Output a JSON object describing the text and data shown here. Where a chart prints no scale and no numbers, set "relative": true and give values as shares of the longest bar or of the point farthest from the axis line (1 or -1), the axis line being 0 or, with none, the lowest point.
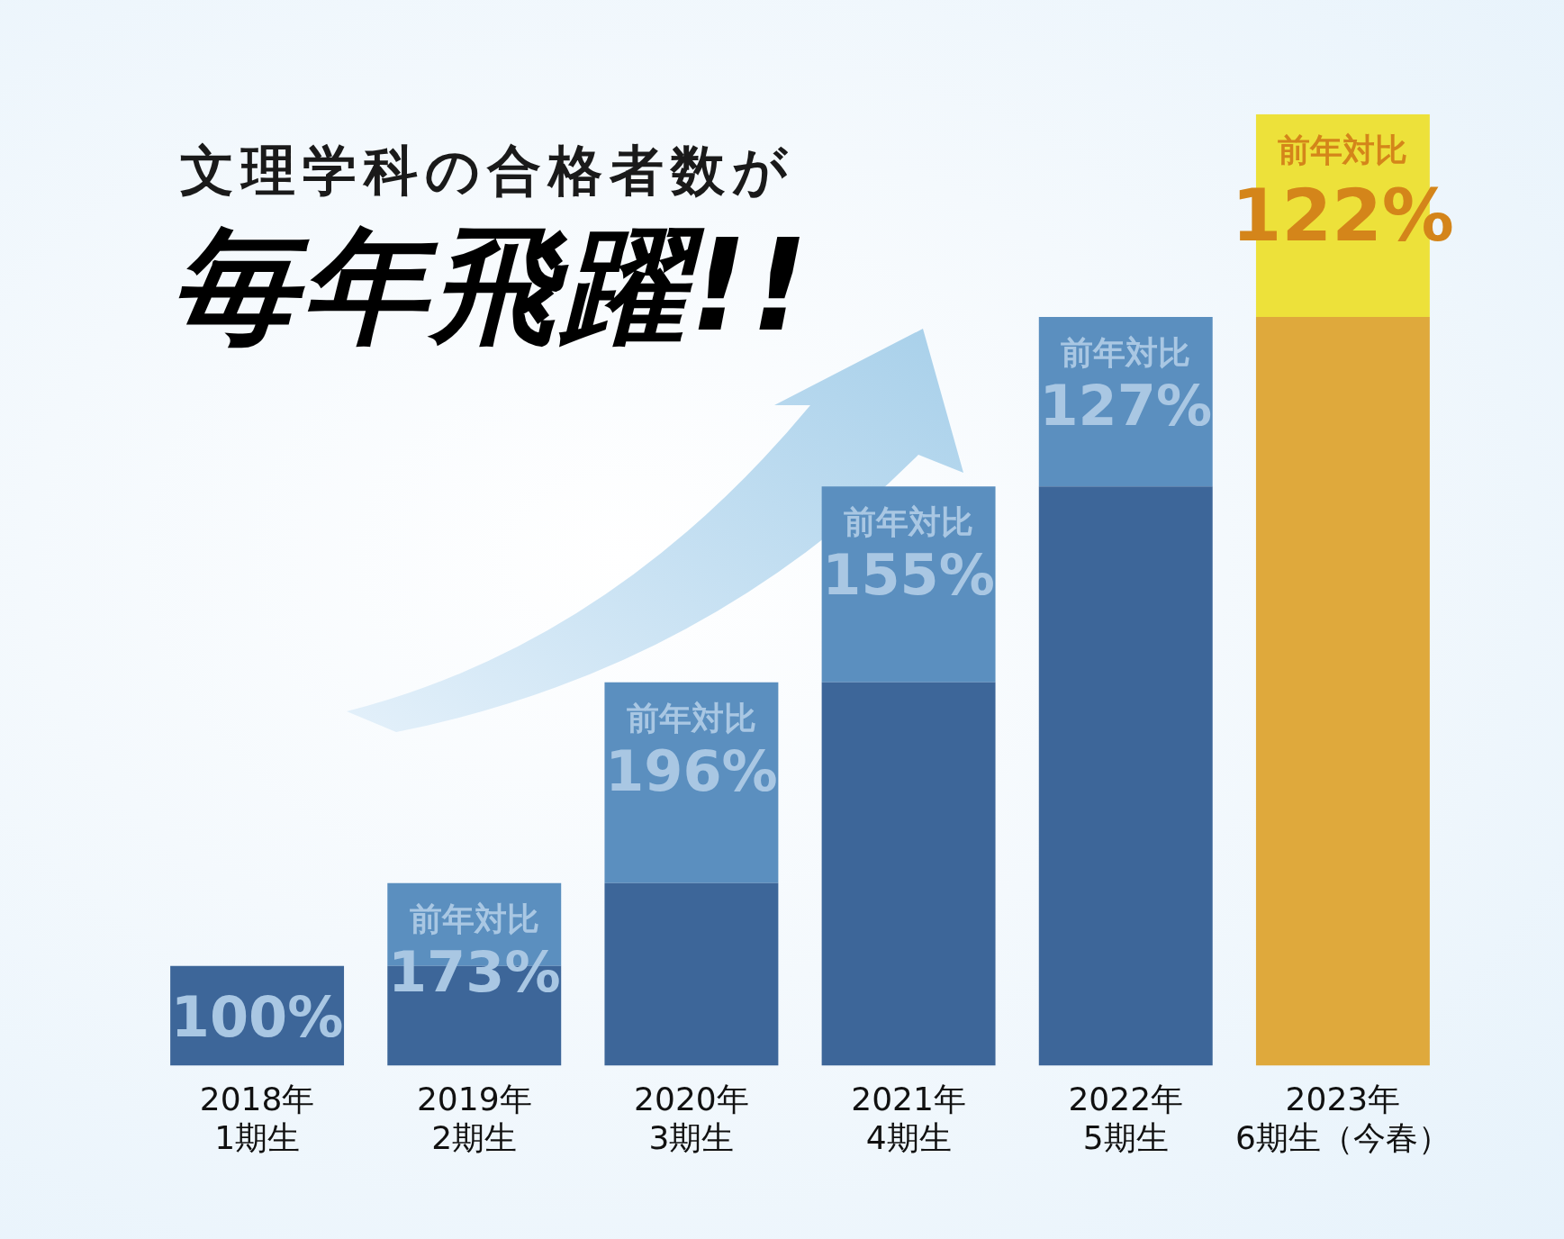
{
  "chart_data": {
    "type": "bar",
    "title": "文理学科の合格者数が",
    "subtitle": "毎年飛躍!!",
    "relative": true,
    "stacked": true,
    "grid": false,
    "legend": false,
    "categories": [
      "2018年\n1期生",
      "2019年\n2期生",
      "2020年\n3期生",
      "2021年\n4期生",
      "2022年\n5期生",
      "2023年\n6期生（今春）"
    ],
    "series": [
      {
        "colors": [
          "#3d6699",
          "#3d6699",
          "#3d6699",
          "#3d6699",
          "#3d6699",
          "#dfa93c"
        ],
        "values": [
          0.105,
          0.105,
          0.192,
          0.403,
          0.609,
          0.787
        ]
      },
      {
        "colors": [
          "#5b8fbf",
          "#5b8fbf",
          "#5b8fbf",
          "#5b8fbf",
          "#5b8fbf",
          "#ede13a"
        ],
        "values": [
          null,
          0.087,
          0.211,
          0.206,
          0.178,
          0.213
        ]
      }
    ],
    "annotations": [
      {
        "text": "100%",
        "x": "2018年\n1期生",
        "y": 0.105
      },
      {
        "text": "前年対比\n173%",
        "x": "2019年\n2期生",
        "y": 0.192
      },
      {
        "text": "前年対比\n196%",
        "x": "2020年\n3期生",
        "y": 0.403
      },
      {
        "text": "前年対比\n155%",
        "x": "2021年\n4期生",
        "y": 0.609
      },
      {
        "text": "前年対比\n127%",
        "x": "2022年\n5期生",
        "y": 0.787
      },
      {
        "text": "前年対比\n122%",
        "x": "2023年\n6期生（今春）",
        "y": 1
      }
    ]
  }
}
